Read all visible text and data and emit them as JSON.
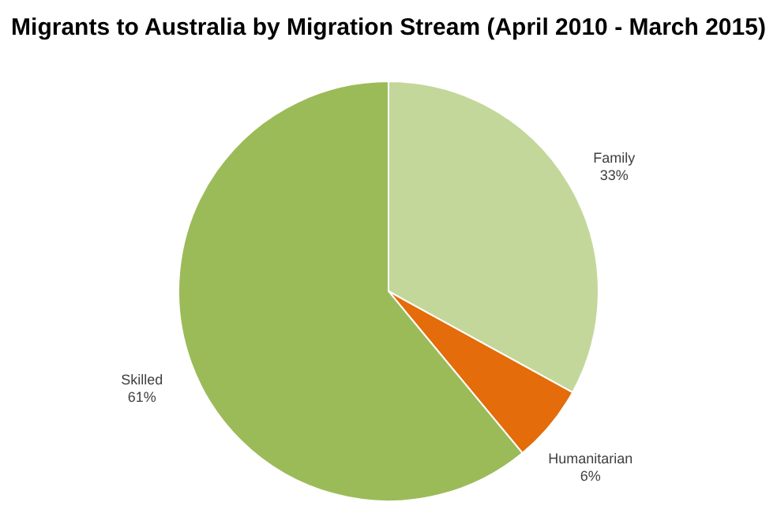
{
  "chart_data": {
    "type": "pie",
    "title": "Migrants to Australia by Migration Stream  (April 2010 - March 2015)",
    "categories": [
      "Family",
      "Humanitarian",
      "Skilled"
    ],
    "values": [
      33,
      6,
      61
    ],
    "value_labels": [
      "33%",
      "6%",
      "61%"
    ],
    "colors": [
      "#c4d79b",
      "#e46c0a",
      "#9bbb59"
    ],
    "legend": false
  }
}
